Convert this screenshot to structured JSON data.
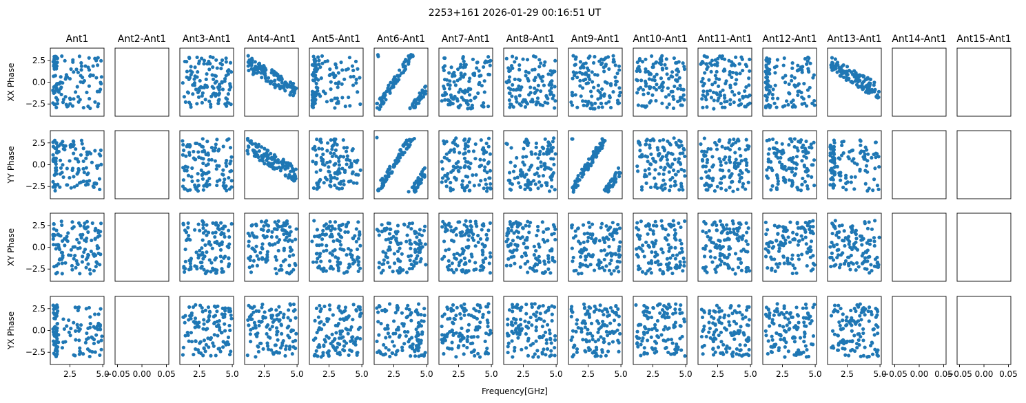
{
  "chart_data": {
    "type": "scatter",
    "title": "2253+161 2026-01-29 00:16:51 UT",
    "xlabel": "Frequency[GHz]",
    "column_titles": [
      "Ant1",
      "Ant2-Ant1",
      "Ant3-Ant1",
      "Ant4-Ant1",
      "Ant5-Ant1",
      "Ant6-Ant1",
      "Ant7-Ant1",
      "Ant8-Ant1",
      "Ant9-Ant1",
      "Ant10-Ant1",
      "Ant11-Ant1",
      "Ant12-Ant1",
      "Ant13-Ant1",
      "Ant14-Ant1",
      "Ant15-Ant1"
    ],
    "row_labels": [
      "XX Phase",
      "YY Phase",
      "XY Phase",
      "YX Phase"
    ],
    "ylim": [
      -3.9,
      3.9
    ],
    "yticks": [
      -2.5,
      0.0,
      2.5
    ],
    "ytick_labels": [
      "−2.5",
      "0.0",
      "2.5"
    ],
    "xlim": [
      1.0,
      5.1
    ],
    "xticks": [
      2.5,
      5.0
    ],
    "xtick_labels": [
      "2.5",
      "5.0"
    ],
    "empty_xlim": [
      -0.055,
      0.055
    ],
    "empty_xticks": [
      -0.05,
      0.0,
      0.05
    ],
    "empty_xtick_labels": [
      "−0.05",
      "0.00",
      "0.05"
    ],
    "empty_columns": [
      1,
      13,
      14
    ],
    "marker_color": "#1f77b4",
    "points_per_panel": 120,
    "panel_patterns": {
      "note": "per row, per column: r = random, c = clustered near low frequency, l = linear phase slope, s = steep slope",
      "XX Phase": [
        "c",
        "",
        "r",
        "l",
        "c",
        "s",
        "r",
        "r",
        "r",
        "r",
        "r",
        "c",
        "l",
        "",
        ""
      ],
      "YY Phase": [
        "c",
        "",
        "r",
        "l",
        "r",
        "s",
        "r",
        "r",
        "s",
        "r",
        "r",
        "r",
        "c",
        "",
        ""
      ],
      "XY Phase": [
        "r",
        "",
        "r",
        "r",
        "r",
        "r",
        "r",
        "r",
        "r",
        "r",
        "r",
        "r",
        "r",
        "",
        ""
      ],
      "YX Phase": [
        "c",
        "",
        "r",
        "r",
        "r",
        "r",
        "r",
        "r",
        "r",
        "r",
        "r",
        "r",
        "r",
        "",
        ""
      ]
    }
  }
}
